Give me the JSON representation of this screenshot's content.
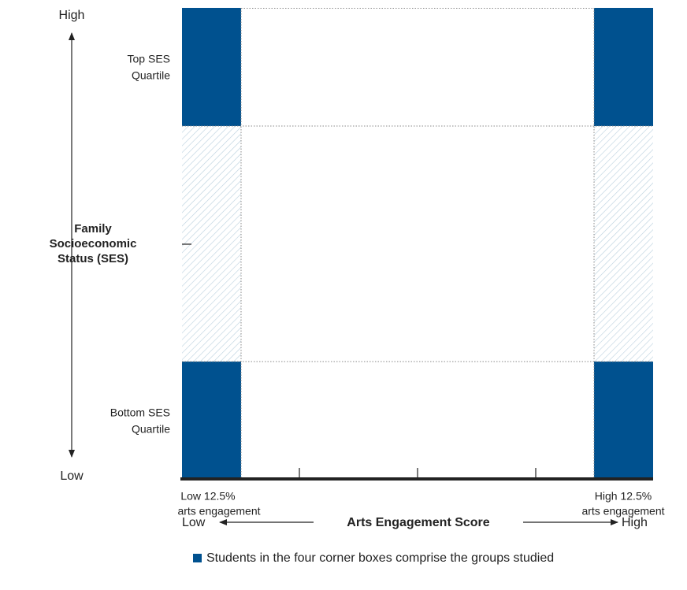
{
  "y_axis": {
    "high": "High",
    "low": "Low",
    "title": [
      "Family",
      "Socioeconomic",
      "Status (SES)"
    ]
  },
  "rows": {
    "top": [
      "Top SES",
      "Quartile"
    ],
    "bottom": [
      "Bottom SES",
      "Quartile"
    ]
  },
  "columns": {
    "low": [
      "Low 12.5%",
      "arts engagement"
    ],
    "high": [
      "High 12.5%",
      "arts engagement"
    ]
  },
  "x_axis": {
    "low": "Low",
    "title": "Arts Engagement Score",
    "high": "High"
  },
  "legend": "Students in the four corner boxes comprise the groups studied"
}
